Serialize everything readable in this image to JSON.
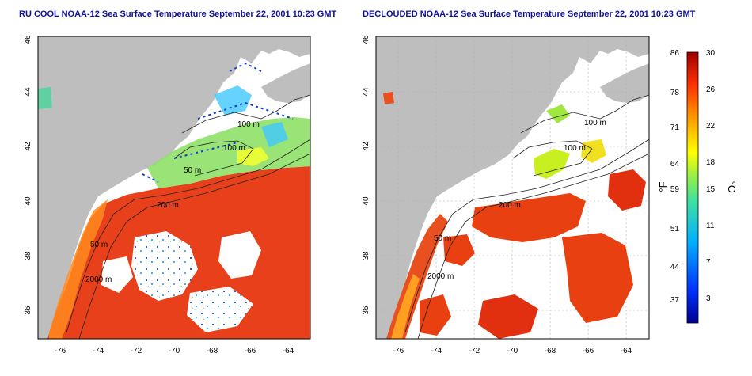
{
  "panels": [
    {
      "title": "RU COOL NOAA-12 Sea Surface Temperature September 22, 2001 10:23 GMT",
      "contour_labels": [
        "100 m",
        "100 m",
        "50 m",
        "200 m",
        "50 m",
        "2000 m"
      ]
    },
    {
      "title": "DECLOUDED NOAA-12 Sea Surface Temperature September 22, 2001 10:23 GMT",
      "contour_labels": [
        "100 m",
        "100 m",
        "200 m",
        "50 m",
        "2000 m"
      ]
    }
  ],
  "axes": {
    "x_ticks": [
      "-76",
      "-74",
      "-72",
      "-70",
      "-68",
      "-66",
      "-64"
    ],
    "y_ticks": [
      "36",
      "38",
      "40",
      "42",
      "44",
      "46"
    ]
  },
  "colorbar": {
    "f_label": "°F",
    "c_label": "°C",
    "f_ticks": [
      "86",
      "78",
      "71",
      "64",
      "59",
      "51",
      "44",
      "37"
    ],
    "c_ticks": [
      "30",
      "26",
      "22",
      "18",
      "15",
      "11",
      "7",
      "3"
    ]
  },
  "colors": {
    "land": "#bebebe",
    "cloud": "#ffffff",
    "warm": "#e8401a",
    "cold": "#1040d0",
    "title": "#1010a0"
  }
}
